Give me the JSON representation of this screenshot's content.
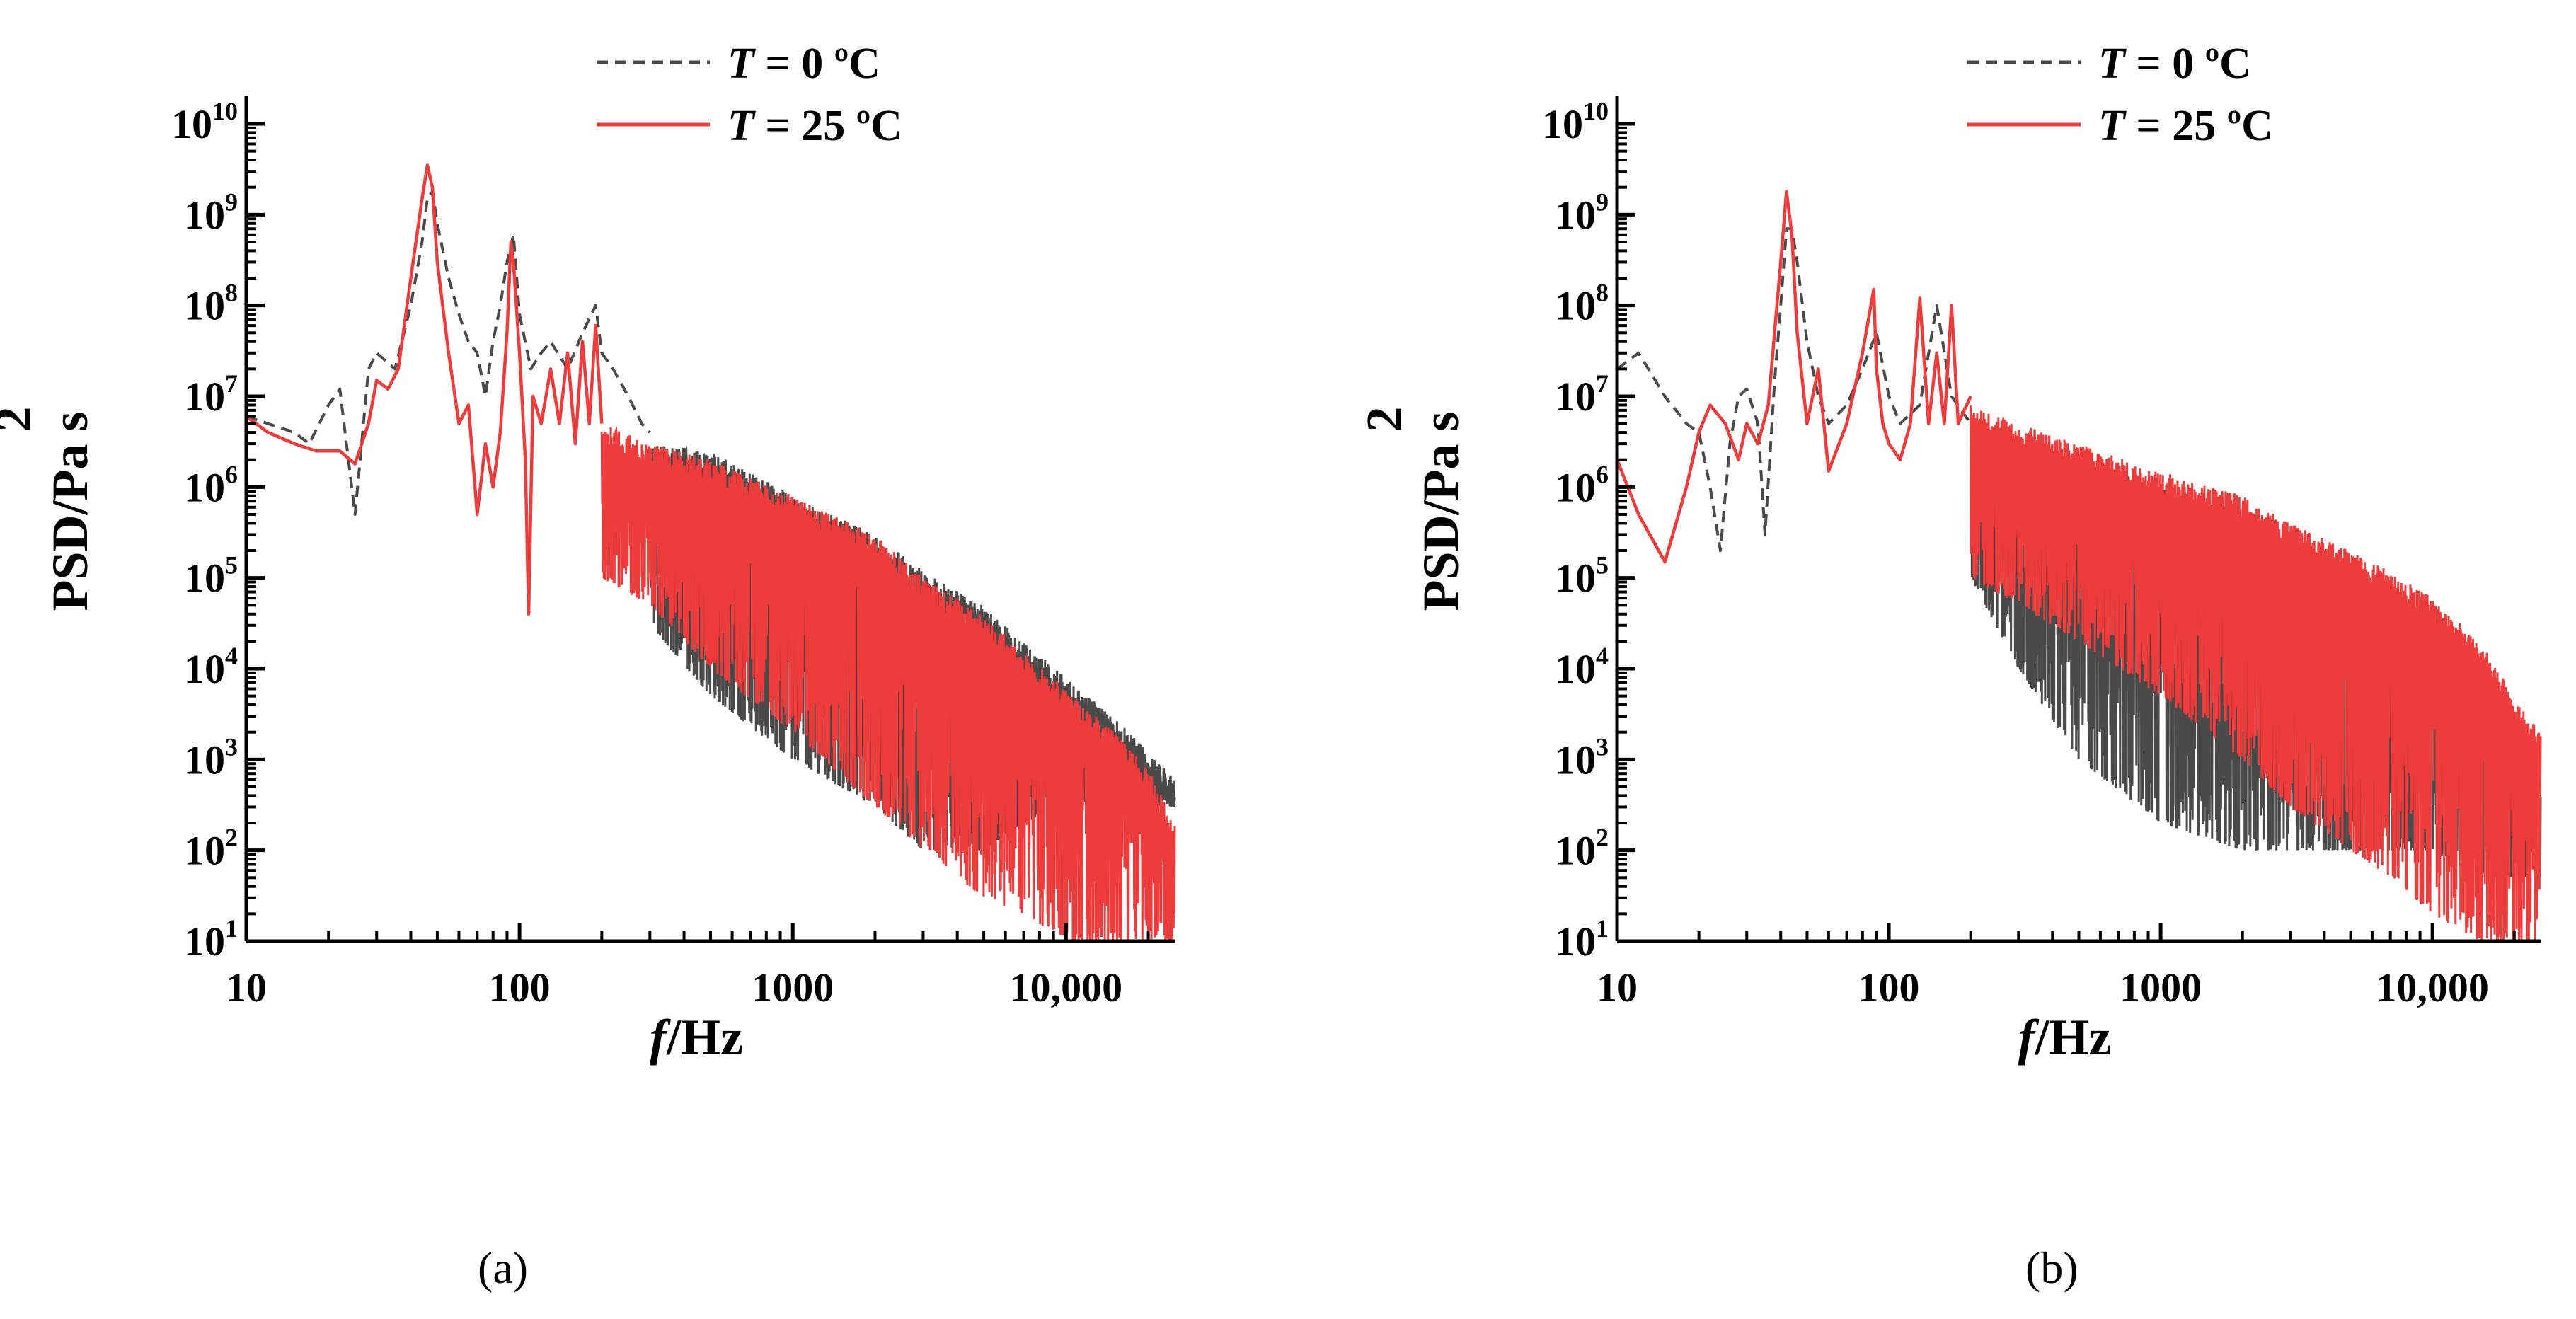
{
  "colors": {
    "t0": "#4a4a4a",
    "t25": "#ee3b3b",
    "axis": "#000000"
  },
  "chart_data": [
    {
      "type": "line",
      "panel": "(a)",
      "xscale": "log",
      "yscale": "log",
      "xlim": [
        10,
        25000
      ],
      "ylim": [
        10,
        10000000000
      ],
      "xticks": [
        10,
        100,
        1000,
        10000
      ],
      "xtick_labels": [
        "10",
        "100",
        "1000",
        "10,000"
      ],
      "yticks": [
        1,
        2,
        3,
        4,
        5,
        6,
        7,
        8,
        9,
        10
      ],
      "ylabel": "PSD/Pa s",
      "ylabel_superscript": "2",
      "xlabel_italic": "f",
      "xlabel_rest": "/Hz",
      "legend": {
        "position": "top",
        "entries": [
          {
            "italic": "T",
            "rest": " = 0  ºC",
            "style": "dashed",
            "color": "#4a4a4a"
          },
          {
            "italic": "T",
            "rest": " = 25 ºC",
            "style": "solid",
            "color": "#ee3b3b"
          }
        ]
      },
      "series": [
        {
          "name": "T = 0  ºC",
          "style": "dashed",
          "color": "#4a4a4a",
          "x": [
            10,
            15,
            17,
            20,
            22,
            25,
            28,
            30,
            35,
            40,
            44,
            46,
            48,
            50,
            55,
            60,
            65,
            70,
            75,
            80,
            85,
            90,
            95,
            100,
            110,
            120,
            130,
            150,
            170,
            190,
            200,
            220,
            250,
            280,
            300,
            350,
            400,
            500,
            700,
            1000,
            1500,
            2000,
            3000,
            4000,
            5000,
            7000,
            10000,
            15000,
            20000,
            25000
          ],
          "y": [
            6000000,
            4000000,
            3000000,
            8000000,
            12000000,
            500000,
            20000000,
            30000000,
            20000000,
            100000000,
            500000000,
            1500000000,
            1800000000,
            800000000,
            200000000,
            80000000,
            40000000,
            30000000,
            10000000,
            40000000,
            100000000,
            300000000,
            600000000,
            80000000,
            20000000,
            30000000,
            40000000,
            20000000,
            50000000,
            100000000,
            30000000,
            20000000,
            10000000,
            5000000,
            4000000,
            3000000,
            2500000,
            1500000,
            800000,
            400000,
            180000,
            100000,
            50000,
            25000,
            15000,
            6000,
            2500,
            1000,
            600,
            400
          ],
          "envelope": {
            "x": [
              300,
              500,
              1000,
              2000,
              3000,
              5000,
              7000,
              10000,
              15000,
              20000,
              25000
            ],
            "upper": [
              3000000,
              2500000,
              800000,
              300000,
              120000,
              50000,
              20000,
              8000,
              3000,
              1200,
              600
            ],
            "lower": [
              30000,
              5000,
              1000,
              300,
              100,
              100,
              200,
              300,
              300,
              300,
              300
            ]
          }
        },
        {
          "name": "T = 25 ºC",
          "style": "solid",
          "color": "#ee3b3b",
          "x": [
            10,
            12,
            15,
            18,
            20,
            22,
            25,
            28,
            30,
            33,
            36,
            40,
            44,
            46,
            48,
            50,
            55,
            60,
            65,
            70,
            75,
            80,
            85,
            90,
            93,
            95,
            100,
            105,
            108,
            112,
            120,
            130,
            140,
            150,
            160,
            170,
            180,
            190,
            200,
            220,
            250,
            300,
            350,
            400,
            500,
            700,
            1000,
            1500,
            2000,
            3000,
            5000,
            7000,
            10000,
            15000,
            20000,
            25000
          ],
          "y": [
            6000000,
            4000000,
            3000000,
            2500000,
            2500000,
            2500000,
            1800000,
            5000000,
            15000000,
            12000000,
            20000000,
            200000000,
            1500000000,
            3500000000,
            2000000000,
            300000000,
            30000000,
            5000000,
            8000000,
            500000,
            3000000,
            1000000,
            4000000,
            50000000,
            500000000,
            300000000,
            30000000,
            2000000,
            40000,
            10000000,
            5000000,
            20000000,
            5000000,
            30000000,
            3000000,
            40000000,
            5000000,
            60000000,
            5000000,
            10000000,
            3000000,
            5000000,
            2000000,
            3000000,
            1500000,
            800000,
            400000,
            200000,
            100000,
            50000,
            18000,
            8000,
            3000,
            1000,
            400,
            200
          ],
          "envelope": {
            "x": [
              200,
              300,
              500,
              1000,
              2000,
              3000,
              5000,
              7000,
              10000,
              15000,
              20000,
              25000
            ],
            "upper": [
              5000000,
              3000000,
              2000000,
              800000,
              300000,
              100000,
              40000,
              15000,
              6000,
              2000,
              800,
              200
            ],
            "lower": [
              100000,
              50000,
              10000,
              2000,
              300,
              100,
              30,
              20,
              10,
              10,
              10,
              10
            ]
          }
        }
      ]
    },
    {
      "type": "line",
      "panel": "(b)",
      "xscale": "log",
      "yscale": "log",
      "xlim": [
        10,
        25000
      ],
      "ylim": [
        10,
        10000000000
      ],
      "xticks": [
        10,
        100,
        1000,
        10000
      ],
      "xtick_labels": [
        "10",
        "100",
        "1000",
        "10,000"
      ],
      "yticks": [
        1,
        2,
        3,
        4,
        5,
        6,
        7,
        8,
        9,
        10
      ],
      "ylabel": "PSD/Pa s",
      "ylabel_superscript": "2",
      "xlabel_italic": "f",
      "xlabel_rest": "/Hz",
      "legend": {
        "position": "top",
        "entries": [
          {
            "italic": "T",
            "rest": " = 0  ºC",
            "style": "dashed",
            "color": "#4a4a4a"
          },
          {
            "italic": "T",
            "rest": " = 25 ºC",
            "style": "solid",
            "color": "#ee3b3b"
          }
        ]
      },
      "series": [
        {
          "name": "T = 0  ºC",
          "style": "dashed",
          "color": "#4a4a4a",
          "x": [
            10,
            12,
            15,
            18,
            20,
            22,
            24,
            26,
            28,
            30,
            33,
            35,
            38,
            40,
            42,
            44,
            46,
            50,
            55,
            60,
            70,
            80,
            90,
            100,
            110,
            130,
            150,
            170,
            200,
            250,
            300,
            400,
            500,
            700,
            1000,
            1500,
            2000,
            3000,
            5000,
            7000,
            10000,
            15000,
            20000,
            25000
          ],
          "y": [
            20000000,
            30000000,
            10000000,
            5000000,
            4000000,
            1000000,
            200000,
            3000000,
            10000000,
            12000000,
            5000000,
            300000,
            15000000,
            100000000,
            700000000,
            700000000,
            300000000,
            40000000,
            10000000,
            5000000,
            8000000,
            20000000,
            50000000,
            10000000,
            5000000,
            8000000,
            100000000,
            10000000,
            5000000,
            10000,
            2000000,
            1500000,
            1000000,
            600000,
            300000,
            150000,
            80000,
            40000,
            15000,
            6000,
            2000,
            700,
            300,
            100
          ],
          "envelope": {
            "x": [
              200,
              300,
              500,
              1000,
              2000,
              3000,
              5000,
              7000,
              10000,
              15000,
              20000,
              25000
            ],
            "upper": [
              5000000,
              3000000,
              2000000,
              1000000,
              500000,
              200000,
              80000,
              30000,
              10000,
              4000,
              1500,
              500
            ],
            "lower": [
              100000,
              10000,
              1000,
              200,
              100,
              100,
              100,
              100,
              100,
              50,
              50,
              50
            ]
          }
        },
        {
          "name": "T = 25 ºC",
          "style": "solid",
          "color": "#ee3b3b",
          "x": [
            10,
            12,
            15,
            18,
            20,
            22,
            25,
            28,
            30,
            33,
            36,
            40,
            42,
            44,
            46,
            50,
            55,
            60,
            70,
            80,
            88,
            90,
            95,
            100,
            110,
            120,
            130,
            140,
            150,
            160,
            170,
            180,
            200,
            250,
            300,
            400,
            500,
            700,
            1000,
            1500,
            2000,
            3000,
            5000,
            7000,
            10000,
            15000,
            20000,
            25000
          ],
          "y": [
            2000000,
            500000,
            150000,
            1000000,
            4000000,
            8000000,
            5000000,
            2000000,
            5000000,
            3000000,
            8000000,
            300000000,
            1800000000,
            600000000,
            50000000,
            5000000,
            20000000,
            1500000,
            5000000,
            30000000,
            150000000,
            20000000,
            5000000,
            3000000,
            2000000,
            5000000,
            120000000,
            5000000,
            30000000,
            5000000,
            100000000,
            5000000,
            10000000,
            3000000,
            5000000,
            3000000,
            2500000,
            1500000,
            1000000,
            600000,
            400000,
            200000,
            100000,
            60000,
            30000,
            10000,
            3000,
            1000
          ],
          "envelope": {
            "x": [
              200,
              300,
              500,
              1000,
              2000,
              3000,
              5000,
              7000,
              10000,
              15000,
              20000,
              25000
            ],
            "upper": [
              8000000,
              5000000,
              3000000,
              1500000,
              800000,
              400000,
              200000,
              120000,
              60000,
              20000,
              5000,
              2000
            ],
            "lower": [
              100000,
              50000,
              20000,
              5000,
              1000,
              300,
              100,
              50,
              20,
              10,
              10,
              10
            ]
          }
        }
      ]
    }
  ]
}
